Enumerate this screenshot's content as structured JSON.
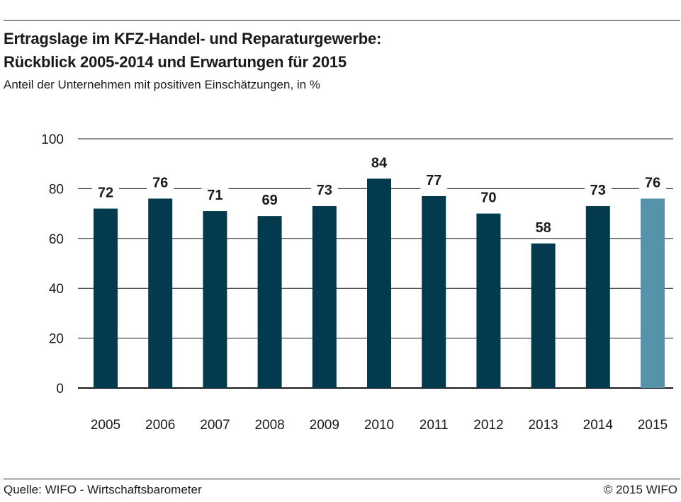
{
  "header": {
    "title_line1": "Ertragslage im KFZ-Handel- und Reparaturgewerbe:",
    "title_line2": "Rückblick 2005-2014 und Erwartungen für 2015",
    "subtitle": "Anteil der Unternehmen mit positiven Einschätzungen, in %"
  },
  "footer": {
    "source": "Quelle: WIFO - Wirtschaftsbarometer",
    "copyright": "© 2015 WIFO"
  },
  "colors": {
    "actual": "#033a4e",
    "expectation": "#5593ab",
    "grid": "#1a1a1a",
    "text": "#1a1a1a"
  },
  "chart_data": {
    "type": "bar",
    "categories": [
      "2005",
      "2006",
      "2007",
      "2008",
      "2009",
      "2010",
      "2011",
      "2012",
      "2013",
      "2014",
      "2015"
    ],
    "values": [
      72,
      76,
      71,
      69,
      73,
      84,
      77,
      70,
      58,
      73,
      76
    ],
    "data_labels": [
      "72",
      "76",
      "71",
      "69",
      "73",
      "84",
      "77",
      "70",
      "58",
      "73",
      "76"
    ],
    "bar_kind": [
      "actual",
      "actual",
      "actual",
      "actual",
      "actual",
      "actual",
      "actual",
      "actual",
      "actual",
      "actual",
      "expectation"
    ],
    "ylim": [
      0,
      100
    ],
    "yticks": [
      0,
      20,
      40,
      60,
      80,
      100
    ],
    "grid": true,
    "xlabel": "",
    "ylabel": ""
  }
}
